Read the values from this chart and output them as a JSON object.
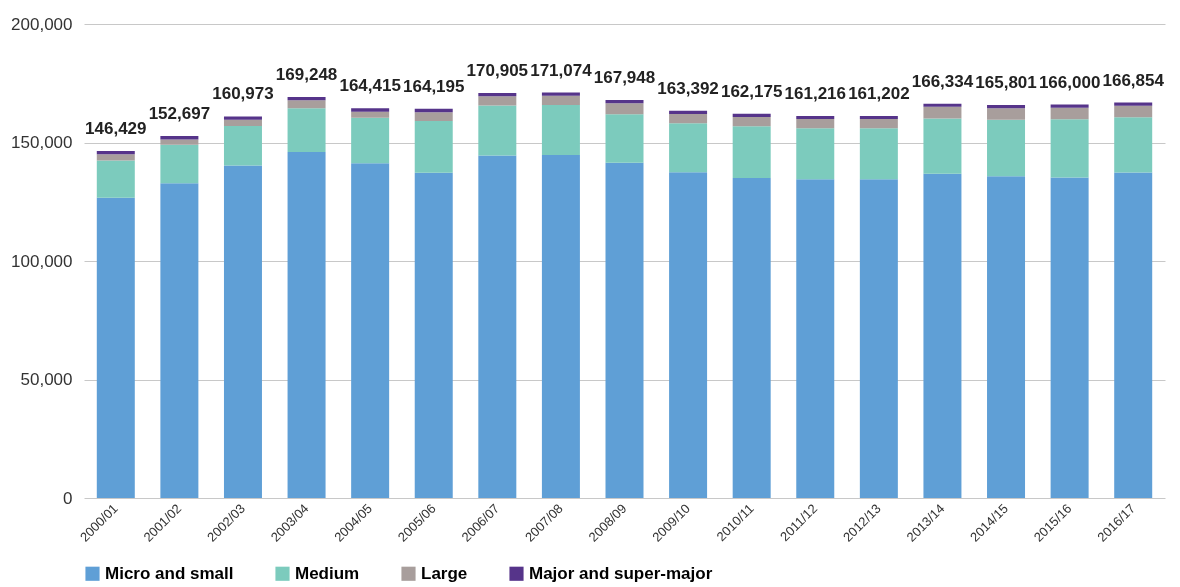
{
  "chart_data": {
    "type": "bar",
    "stacked": true,
    "categories": [
      "2000/01",
      "2001/02",
      "2002/03",
      "2003/04",
      "2004/05",
      "2005/06",
      "2006/07",
      "2007/08",
      "2008/09",
      "2009/10",
      "2010/11",
      "2011/12",
      "2012/13",
      "2013/14",
      "2014/15",
      "2015/16",
      "2016/17"
    ],
    "series": [
      {
        "name": "Micro and small",
        "color": "#5f9fd6",
        "values": [
          126729,
          132797,
          140273,
          145948,
          141215,
          137195,
          144505,
          144674,
          141448,
          137492,
          134975,
          134516,
          134502,
          136834,
          135801,
          135200,
          137354
        ]
      },
      {
        "name": "Medium",
        "color": "#7ccbbd",
        "values": [
          15700,
          16300,
          16700,
          18500,
          19200,
          21900,
          21100,
          21100,
          20500,
          20600,
          21900,
          21500,
          21500,
          23300,
          23800,
          24600,
          23300
        ]
      },
      {
        "name": "Large",
        "color": "#a89e9c",
        "values": [
          2600,
          2200,
          2600,
          3400,
          2600,
          3700,
          3900,
          3900,
          4600,
          3900,
          3900,
          3900,
          3900,
          4900,
          4900,
          4900,
          4900
        ]
      },
      {
        "name": "Major and super-major",
        "color": "#56348a",
        "values": [
          1400,
          1400,
          1400,
          1400,
          1400,
          1400,
          1400,
          1400,
          1400,
          1400,
          1400,
          1300,
          1300,
          1300,
          1300,
          1300,
          1300
        ]
      }
    ],
    "totals": [
      "146,429",
      "152,697",
      "160,973",
      "169,248",
      "164,415",
      "164,195",
      "170,905",
      "171,074",
      "167,948",
      "163,392",
      "162,175",
      "161,216",
      "161,202",
      "166,334",
      "165,801",
      "166,000",
      "166,854"
    ],
    "ylim": [
      0,
      200000
    ],
    "yticks": [
      0,
      {
        "value": 50000,
        "label": "50,000"
      },
      {
        "value": 100000,
        "label": "100,000"
      },
      {
        "value": 150000,
        "label": "150,000"
      },
      {
        "value": 200000,
        "label": "200,000"
      }
    ],
    "grid": "y",
    "legend": "bottom"
  }
}
